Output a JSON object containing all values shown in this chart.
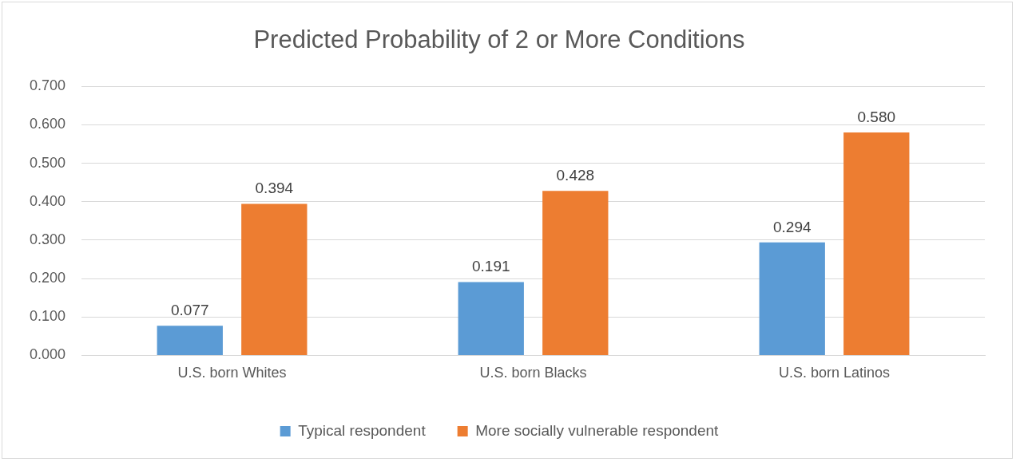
{
  "chart_data": {
    "type": "bar",
    "title": "Predicted Probability of 2 or More Conditions",
    "categories": [
      "U.S. born Whites",
      "U.S. born Blacks",
      "U.S. born Latinos"
    ],
    "series": [
      {
        "name": "Typical respondent",
        "color": "#5b9bd5",
        "values": [
          0.077,
          0.191,
          0.294
        ],
        "value_labels": [
          "0.077",
          "0.191",
          "0.294"
        ]
      },
      {
        "name": "More socially vulnerable respondent",
        "color": "#ed7d31",
        "values": [
          0.394,
          0.428,
          0.58
        ],
        "value_labels": [
          "0.394",
          "0.428",
          "0.580"
        ]
      }
    ],
    "ylim": [
      0,
      0.7
    ],
    "yticks": [
      {
        "value": 0,
        "label": "0.000"
      },
      {
        "value": 0.1,
        "label": "0.100"
      },
      {
        "value": 0.2,
        "label": "0.200"
      },
      {
        "value": 0.3,
        "label": "0.300"
      },
      {
        "value": 0.4,
        "label": "0.400"
      },
      {
        "value": 0.5,
        "label": "0.500"
      },
      {
        "value": 0.6,
        "label": "0.600"
      },
      {
        "value": 0.7,
        "label": "0.700"
      }
    ],
    "grid": "y",
    "legend": "bottom"
  }
}
